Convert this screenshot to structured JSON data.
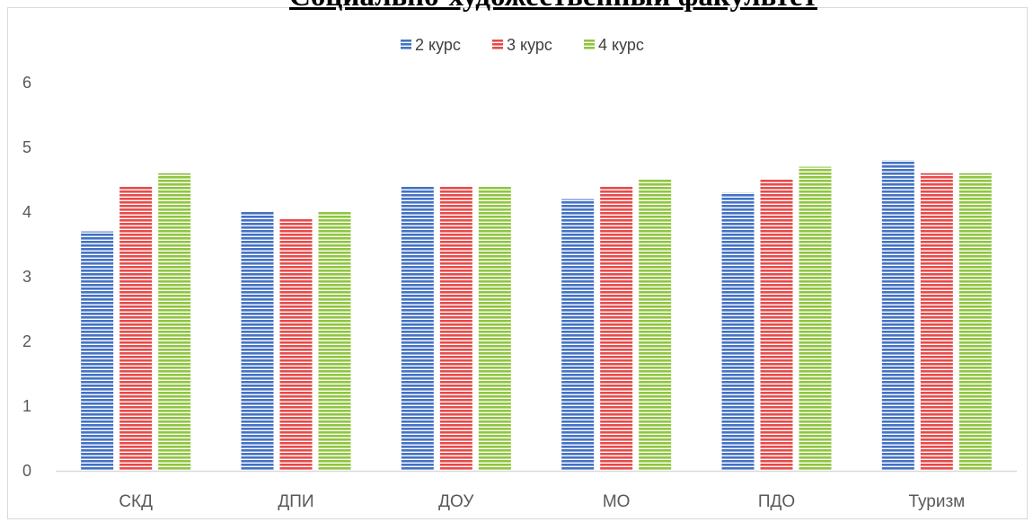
{
  "page": {
    "title": "Социально-художественный факультет"
  },
  "chart_data": {
    "type": "bar",
    "categories": [
      "СКД",
      "ДПИ",
      "ДОУ",
      "МО",
      "ПДО",
      "Туризм"
    ],
    "series": [
      {
        "name": "2 курс",
        "color": "#4472C4",
        "values": [
          3.7,
          4.0,
          4.4,
          4.2,
          4.3,
          4.8
        ]
      },
      {
        "name": "3 курс",
        "color": "#E84A4A",
        "values": [
          4.4,
          3.9,
          4.4,
          4.4,
          4.5,
          4.6
        ]
      },
      {
        "name": "4 курс",
        "color": "#8FC540",
        "values": [
          4.6,
          4.0,
          4.4,
          4.5,
          4.7,
          4.6
        ]
      }
    ],
    "ylim": [
      0,
      6
    ],
    "yticks": [
      0,
      1,
      2,
      3,
      4,
      5,
      6
    ],
    "grid": false,
    "legend_position": "top",
    "bar_pattern": "horizontal-stripes"
  }
}
